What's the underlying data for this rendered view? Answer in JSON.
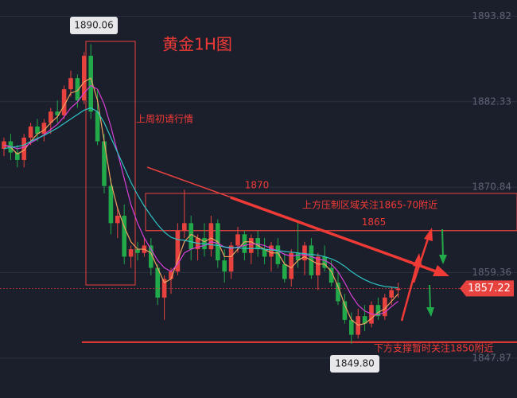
{
  "chart_data": {
    "type": "candlestick",
    "title": "黄金1H图",
    "open": [
      1876,
      1877,
      1875.5,
      1874.5,
      1877.5,
      1879,
      1878,
      1879.5,
      1881,
      1880.5,
      1884,
      1885.5,
      1882.5,
      1888.5,
      1881,
      1877,
      1871,
      1866,
      1867,
      1861.5,
      1862.5,
      1862,
      1863,
      1860,
      1856,
      1858.5,
      1859.5,
      1865,
      1866,
      1862.5,
      1864,
      1862.5,
      1866,
      1861,
      1859.5,
      1863,
      1864.5,
      1862,
      1864,
      1862.5,
      1861.5,
      1863,
      1860.5,
      1858.5,
      1862,
      1861,
      1863,
      1859,
      1861.5,
      1860,
      1858,
      1855.5,
      1853,
      1851,
      1853.5,
      1852.5,
      1855,
      1853.5,
      1856,
      1857
    ],
    "high": [
      1877.5,
      1878,
      1876.5,
      1878,
      1879.5,
      1880,
      1880,
      1881.5,
      1882.5,
      1884.5,
      1886.5,
      1886,
      1889,
      1890.06,
      1884,
      1878,
      1872,
      1868,
      1868.5,
      1863,
      1863.5,
      1864,
      1864,
      1860.5,
      1859,
      1860,
      1866,
      1870.5,
      1867,
      1864.5,
      1866,
      1867,
      1866.5,
      1862.5,
      1863.5,
      1865.5,
      1865,
      1864.5,
      1865,
      1864,
      1863.5,
      1864,
      1862,
      1862.5,
      1866,
      1863.5,
      1864,
      1862,
      1863,
      1861,
      1859.5,
      1856.5,
      1854,
      1854.5,
      1855,
      1855.5,
      1856,
      1856.5,
      1857.5,
      1858
    ],
    "low": [
      1875,
      1874.5,
      1873.5,
      1873.5,
      1876.5,
      1877,
      1877,
      1878,
      1879.5,
      1880,
      1883,
      1881.5,
      1882,
      1880,
      1876.5,
      1870,
      1864.5,
      1864,
      1860.5,
      1860,
      1861,
      1861.5,
      1859,
      1855,
      1853,
      1856.5,
      1859,
      1864,
      1861,
      1861,
      1861.5,
      1861.5,
      1860,
      1858,
      1858.5,
      1862,
      1861,
      1860.5,
      1861.5,
      1860.5,
      1859.5,
      1860,
      1858,
      1857.5,
      1860,
      1859,
      1858.5,
      1857,
      1859.5,
      1857.5,
      1855,
      1852.5,
      1849.8,
      1850.5,
      1851.5,
      1852,
      1853,
      1853,
      1855,
      1856
    ],
    "close": [
      1877,
      1875.5,
      1874.5,
      1877.5,
      1879,
      1878,
      1879.5,
      1881,
      1880.5,
      1884,
      1885.5,
      1882.5,
      1888.5,
      1881,
      1877,
      1871,
      1866,
      1867,
      1861.5,
      1862.5,
      1862,
      1863,
      1860,
      1856,
      1858.5,
      1859.5,
      1865,
      1866,
      1862.5,
      1864,
      1862.5,
      1866,
      1861,
      1859.5,
      1863,
      1864.5,
      1862,
      1864,
      1862.5,
      1861.5,
      1863,
      1860.5,
      1858.5,
      1862,
      1861,
      1863,
      1859,
      1861.5,
      1860,
      1858,
      1855.5,
      1853,
      1851,
      1853.5,
      1852.5,
      1855,
      1853.5,
      1856,
      1857,
      1857.22
    ],
    "up_color": "#e8423f",
    "down_color": "#22a94a",
    "series": [
      {
        "color": "#f0a060",
        "values": [
          1876.5,
          1876.2,
          1875.3,
          1875.8,
          1877,
          1878,
          1878.5,
          1879.5,
          1880.3,
          1881.8,
          1883.5,
          1883.8,
          1885,
          1885.5,
          1882.5,
          1877,
          1871.5,
          1868,
          1865.5,
          1863.5,
          1862.5,
          1862.5,
          1862,
          1860,
          1858,
          1858.5,
          1861,
          1863.5,
          1864.5,
          1864,
          1863.5,
          1864,
          1863.5,
          1861.5,
          1861.5,
          1862.5,
          1863.5,
          1863.5,
          1863,
          1862.5,
          1862,
          1862,
          1860.5,
          1860,
          1861,
          1861.5,
          1861,
          1860.5,
          1860.5,
          1859.5,
          1857.5,
          1855,
          1853,
          1852.3,
          1852.5,
          1853.2,
          1854,
          1854.5,
          1855.5,
          1856.5
        ]
      },
      {
        "color": "#d63fd6",
        "values": [
          1876.5,
          1876.3,
          1876,
          1876.2,
          1876.8,
          1877.3,
          1877.9,
          1878.6,
          1879.3,
          1880.3,
          1881.5,
          1882.3,
          1883.5,
          1884.5,
          1884,
          1882,
          1879,
          1875.5,
          1872,
          1868.5,
          1866,
          1864,
          1862.5,
          1861,
          1860,
          1859.5,
          1860.5,
          1862,
          1862.5,
          1862.8,
          1863,
          1863.5,
          1863.3,
          1862.8,
          1862.6,
          1862.8,
          1863,
          1863.2,
          1863.2,
          1863,
          1862.6,
          1862.3,
          1861.8,
          1861.6,
          1861.7,
          1861.8,
          1861.5,
          1861.2,
          1861,
          1860.5,
          1859.5,
          1858,
          1856.3,
          1855,
          1854.2,
          1853.8,
          1853.7,
          1854,
          1854.8,
          1855.5
        ]
      },
      {
        "color": "#2fc4c4",
        "values": [
          1876,
          1876.2,
          1876.3,
          1876.5,
          1877,
          1877.4,
          1877.8,
          1878.3,
          1878.8,
          1879.4,
          1880,
          1880.6,
          1881.2,
          1881.5,
          1881,
          1879.5,
          1877.5,
          1875.5,
          1873.5,
          1871.5,
          1869.8,
          1868.3,
          1867,
          1865.8,
          1864.8,
          1864.1,
          1863.8,
          1863.7,
          1863.5,
          1863.3,
          1863.2,
          1863.1,
          1863,
          1862.8,
          1862.7,
          1862.7,
          1862.6,
          1862.6,
          1862.6,
          1862.5,
          1862.4,
          1862.3,
          1862.2,
          1862.1,
          1862,
          1861.9,
          1861.8,
          1861.7,
          1861.5,
          1861.2,
          1860.8,
          1860.2,
          1859.5,
          1858.9,
          1858.4,
          1858,
          1857.7,
          1857.5,
          1857.4,
          1857.3
        ]
      }
    ],
    "ylim": [
      1842.5,
      1896
    ],
    "yticks": [
      1893.82,
      1882.33,
      1870.84,
      1859.36,
      1847.87
    ],
    "grid": true,
    "resistance_lines": [
      1870,
      1865
    ],
    "support_line": 1850,
    "peak_label": "1890.06",
    "trough_label": "1849.80",
    "annotations": {
      "last_week": "上周初请行情",
      "resistance": "上方压制区域关注1865-70附近",
      "support": "下方支撑暂时关注1850附近"
    }
  }
}
